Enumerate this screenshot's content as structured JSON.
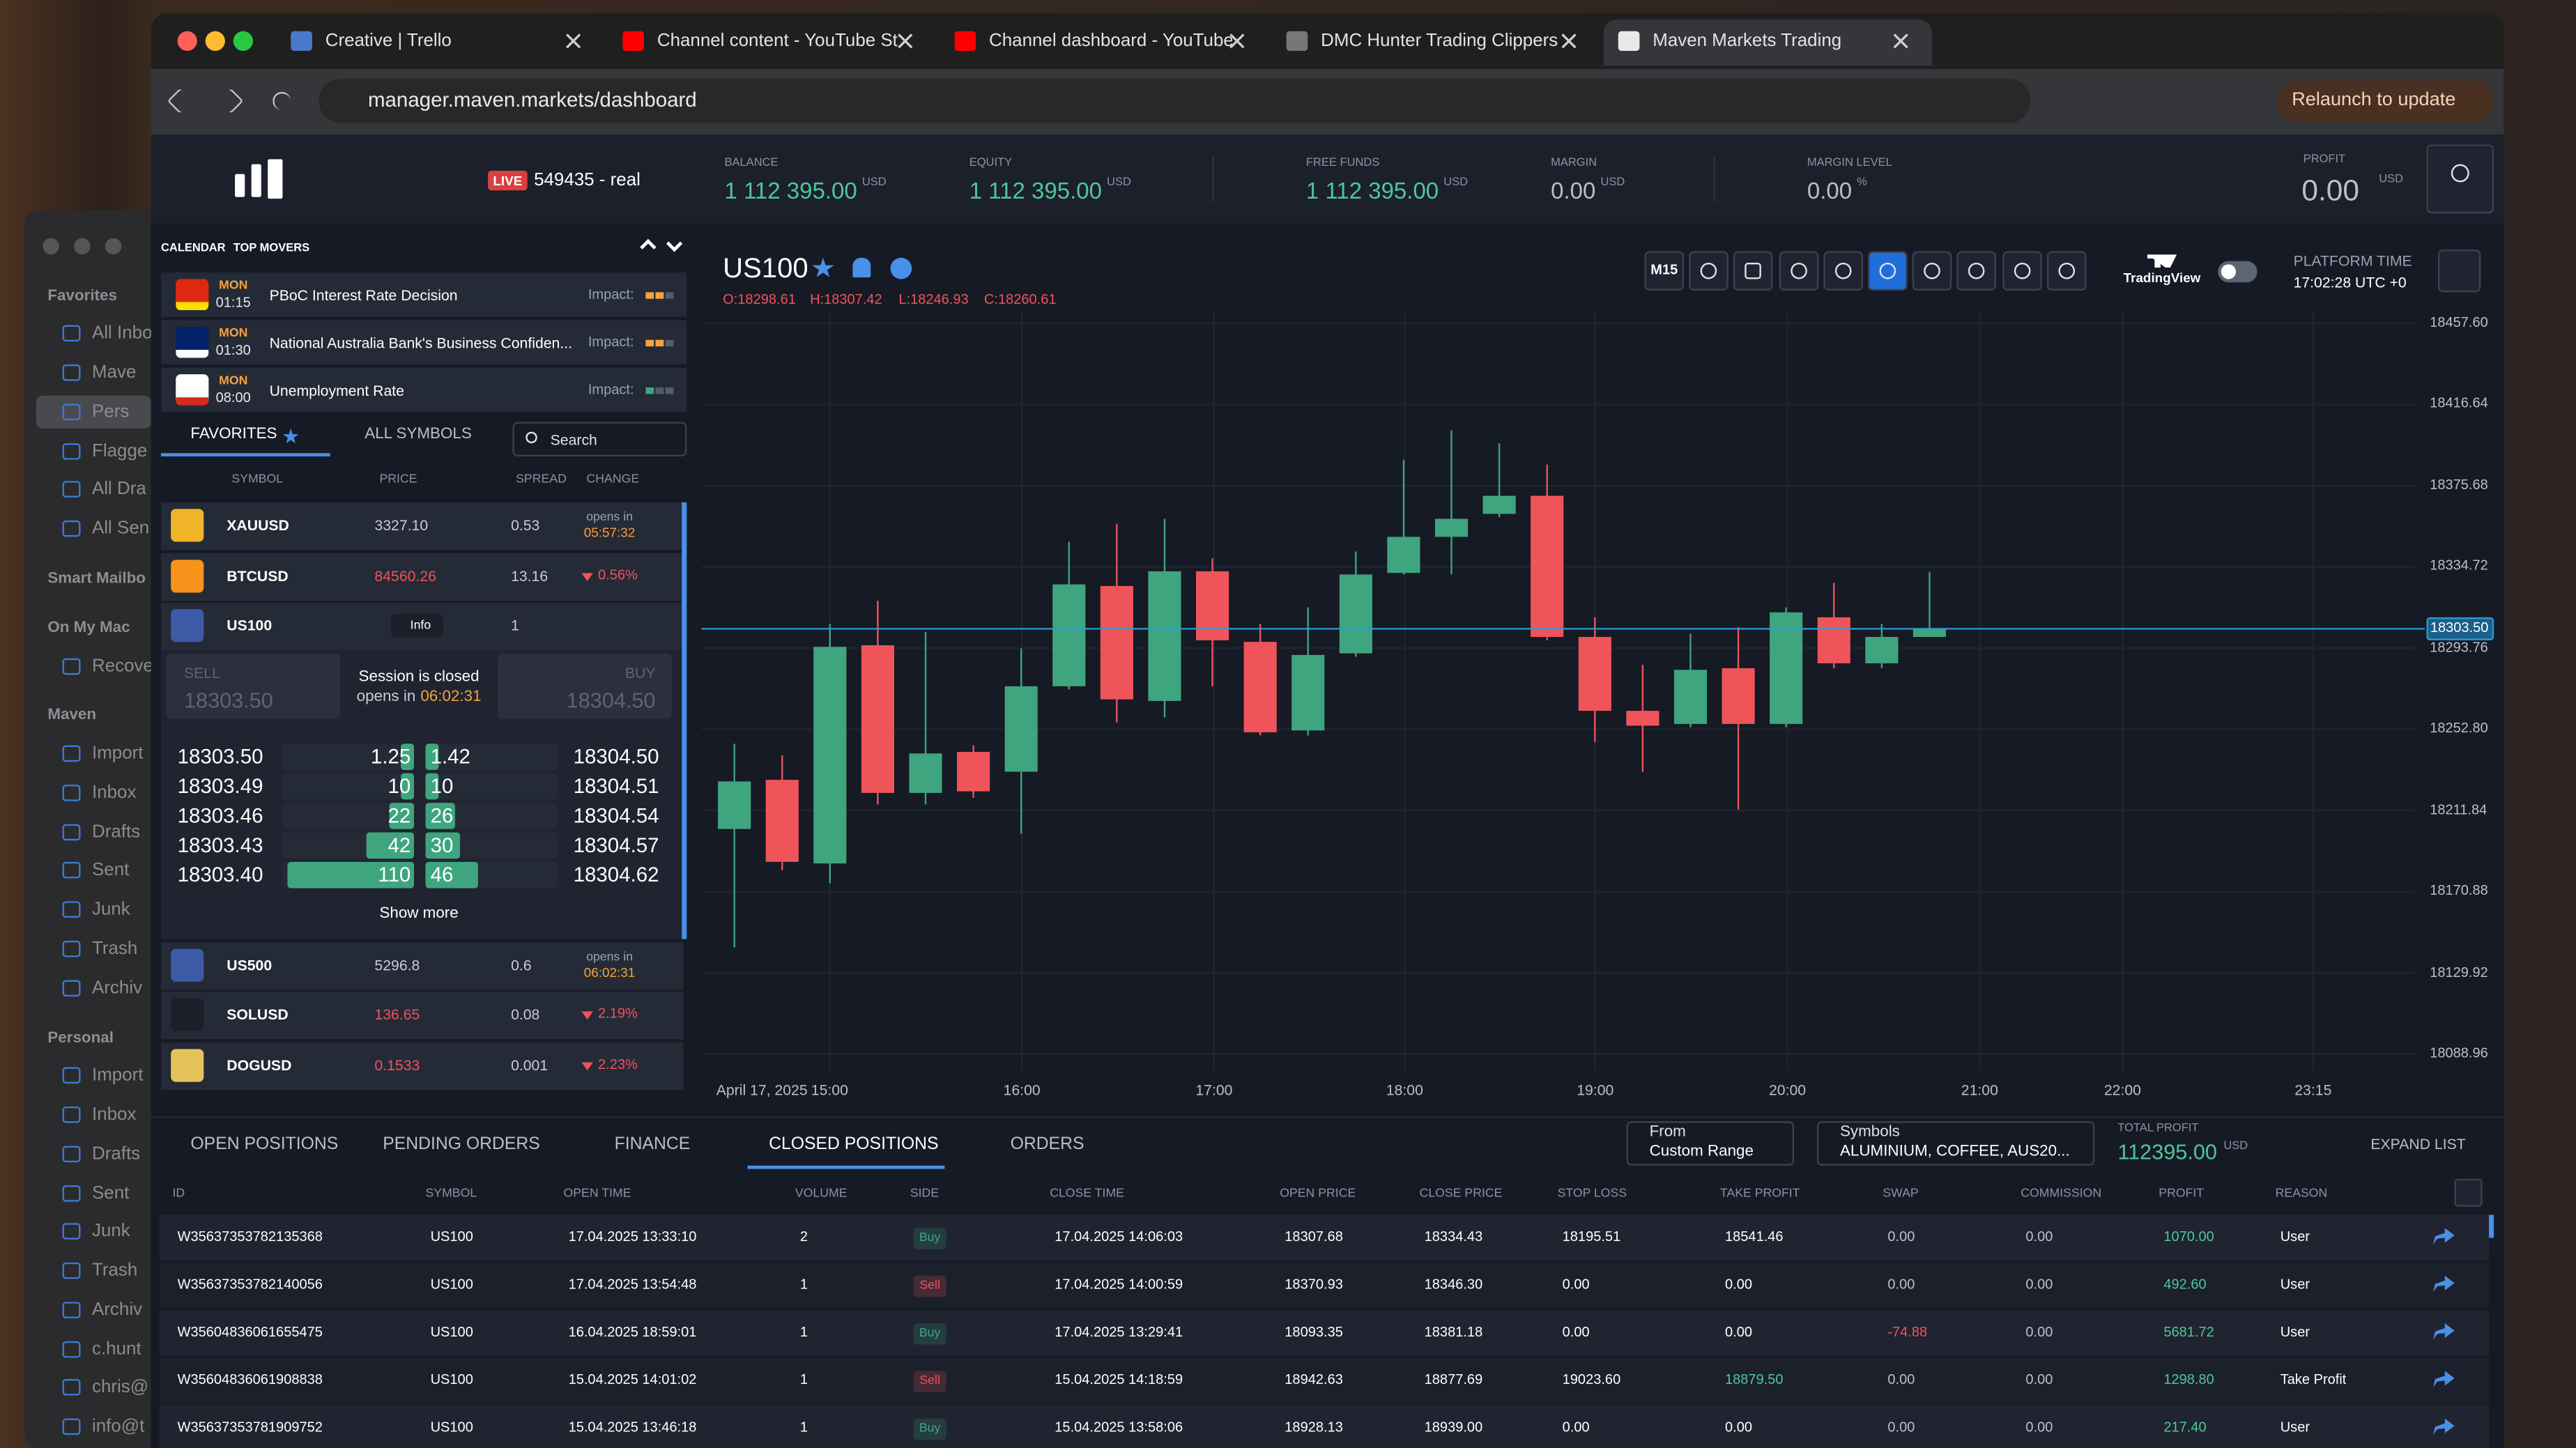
{
  "browser": {
    "tabs": [
      "Creative | Trello",
      "Channel content - YouTube St",
      "Channel dashboard - YouTube",
      "DMC Hunter Trading Clippers",
      "Maven Markets Trading"
    ],
    "url": "manager.maven.markets/dashboard",
    "relaunch": "Relaunch to update"
  },
  "mail_sidebar": [
    {
      "label": "Favorites",
      "kind": "section"
    },
    {
      "label": "All Inbo",
      "kind": "item"
    },
    {
      "label": "Mave",
      "kind": "item"
    },
    {
      "label": "Pers",
      "kind": "selected"
    },
    {
      "label": "Flagge",
      "kind": "item"
    },
    {
      "label": "All Dra",
      "kind": "item"
    },
    {
      "label": "All Sen",
      "kind": "item"
    },
    {
      "label": "Smart Mailbo",
      "kind": "section"
    },
    {
      "label": "On My Mac",
      "kind": "section"
    },
    {
      "label": "Recove",
      "kind": "item"
    },
    {
      "label": "Maven",
      "kind": "section"
    },
    {
      "label": "Import",
      "kind": "item"
    },
    {
      "label": "Inbox",
      "kind": "item"
    },
    {
      "label": "Drafts",
      "kind": "item"
    },
    {
      "label": "Sent",
      "kind": "item"
    },
    {
      "label": "Junk",
      "kind": "item"
    },
    {
      "label": "Trash",
      "kind": "item"
    },
    {
      "label": "Archiv",
      "kind": "item"
    },
    {
      "label": "Personal",
      "kind": "section"
    },
    {
      "label": "Import",
      "kind": "item"
    },
    {
      "label": "Inbox",
      "kind": "item"
    },
    {
      "label": "Drafts",
      "kind": "item"
    },
    {
      "label": "Sent",
      "kind": "item"
    },
    {
      "label": "Junk",
      "kind": "item"
    },
    {
      "label": "Trash",
      "kind": "item"
    },
    {
      "label": "Archiv",
      "kind": "item"
    },
    {
      "label": "c.hunt",
      "kind": "item"
    },
    {
      "label": "chris@",
      "kind": "item"
    },
    {
      "label": "info@t",
      "kind": "item"
    }
  ],
  "header": {
    "live": "LIVE",
    "account": "549435 - real",
    "stats": [
      {
        "label": "BALANCE",
        "value": "1 112 395.00",
        "unit": "USD"
      },
      {
        "label": "EQUITY",
        "value": "1 112 395.00",
        "unit": "USD"
      },
      {
        "label": "FREE FUNDS",
        "value": "1 112 395.00",
        "unit": "USD"
      },
      {
        "label": "MARGIN",
        "value": "0.00",
        "unit": "USD"
      },
      {
        "label": "MARGIN LEVEL",
        "value": "0.00",
        "unit": "%"
      }
    ],
    "profit": {
      "label": "PROFIT",
      "value": "0.00",
      "unit": "USD"
    }
  },
  "calendar": {
    "tabs": [
      "CALENDAR",
      "TOP MOVERS"
    ],
    "events": [
      {
        "day": "MON",
        "time": "01:15",
        "name": "PBoC Interest Rate Decision",
        "impact": "Impact:"
      },
      {
        "day": "MON",
        "time": "01:30",
        "name": "National Australia Bank's Business Confiden...",
        "impact": "Impact:"
      },
      {
        "day": "MON",
        "time": "08:00",
        "name": "Unemployment Rate",
        "impact": "Impact:"
      }
    ]
  },
  "symbols": {
    "tabs": [
      "FAVORITES",
      "ALL SYMBOLS"
    ],
    "search": "Search",
    "columns": [
      "SYMBOL",
      "PRICE",
      "SPREAD",
      "CHANGE"
    ],
    "rows": [
      {
        "symbol": "XAUUSD",
        "price": "3327.10",
        "spread": "0.53",
        "change": "opens in",
        "time": "05:57:32",
        "color": "#c8ccd4"
      },
      {
        "symbol": "BTCUSD",
        "price": "84560.26",
        "spread": "13.16",
        "change": "0.56%",
        "color": "#f0545b"
      },
      {
        "symbol": "US100",
        "info": "Info",
        "spread": "1"
      },
      {
        "symbol": "US500",
        "price": "5296.8",
        "spread": "0.6",
        "change": "opens in",
        "time": "06:02:31",
        "color": "#c8ccd4"
      },
      {
        "symbol": "SOLUSD",
        "price": "136.65",
        "spread": "0.08",
        "change": "2.19%",
        "color": "#f0545b"
      },
      {
        "symbol": "DOGUSD",
        "price": "0.1533",
        "spread": "0.001",
        "change": "2.23%",
        "color": "#f0545b"
      }
    ],
    "expanded": {
      "sell": "SELL",
      "sell_price": "18303.50",
      "status": "Session is closed",
      "opens": "opens in",
      "time": "06:02:31",
      "buy": "BUY",
      "buy_price": "18304.50",
      "show_more": "Show more",
      "depth": [
        {
          "sell": "18303.50",
          "sv": 1.25,
          "bv": 1.42,
          "buy": "18304.50"
        },
        {
          "sell": "18303.49",
          "sv": 10,
          "bv": 10,
          "buy": "18304.51"
        },
        {
          "sell": "18303.46",
          "sv": 22,
          "bv": 26,
          "buy": "18304.54"
        },
        {
          "sell": "18303.43",
          "sv": 42,
          "bv": 30,
          "buy": "18304.57"
        },
        {
          "sell": "18303.40",
          "sv": 110,
          "bv": 46,
          "buy": "18304.62"
        }
      ]
    }
  },
  "chart": {
    "type": "candlestick",
    "symbol": "US100",
    "ohlc": [
      "O:18298.61",
      "H:18307.42",
      "L:18246.93",
      "C:18260.61"
    ],
    "timeframe": "M15",
    "brand": "TradingView",
    "platform_time_label": "PLATFORM TIME",
    "platform_time": "17:02:28 UTC +0",
    "up_color": "#3fa57f",
    "down_color": "#f0545b",
    "ylim": [
      18078.2,
      18470.0
    ],
    "yticks": [
      {
        "value": 18457.6,
        "label": "18457.60"
      },
      {
        "value": 18416.64,
        "label": "18416.64"
      },
      {
        "value": 18375.68,
        "label": "18375.68"
      },
      {
        "value": 18334.72,
        "label": "18334.72"
      },
      {
        "value": 18293.76,
        "label": "18293.76"
      },
      {
        "value": 18252.8,
        "label": "18252.80"
      },
      {
        "value": 18211.84,
        "label": "18211.84"
      },
      {
        "value": 18170.88,
        "label": "18170.88"
      },
      {
        "value": 18129.92,
        "label": "18129.92"
      },
      {
        "value": 18088.96,
        "label": "18088.96"
      }
    ],
    "date": "April 17, 2025",
    "xticks": [
      "15:00",
      "16:00",
      "17:00",
      "18:00",
      "19:00",
      "20:00",
      "21:00",
      "22:00",
      "23:15"
    ],
    "last_price": {
      "value": 18303.5,
      "label": "18303.50"
    },
    "candles": [
      [
        18202.5,
        18245.5,
        18142.8,
        18226.5
      ],
      [
        18227.3,
        18239.7,
        18181.7,
        18185.9
      ],
      [
        18185.1,
        18306.0,
        18175.1,
        18294.4
      ],
      [
        18295.2,
        18317.6,
        18214.9,
        18220.7
      ],
      [
        18220.7,
        18301.9,
        18214.9,
        18240.6
      ],
      [
        18241.4,
        18244.7,
        18218.2,
        18221.5
      ],
      [
        18231.4,
        18293.6,
        18200.0,
        18274.5
      ],
      [
        18274.5,
        18347.4,
        18272.9,
        18325.9
      ],
      [
        18325.1,
        18356.5,
        18256.3,
        18267.9
      ],
      [
        18267.1,
        18359.0,
        18258.8,
        18332.5
      ],
      [
        18332.5,
        18339.1,
        18274.5,
        18297.7
      ],
      [
        18296.9,
        18306.0,
        18249.7,
        18251.3
      ],
      [
        18252.2,
        18314.3,
        18249.7,
        18290.3
      ],
      [
        18291.1,
        18342.5,
        18289.4,
        18330.9
      ],
      [
        18331.7,
        18388.8,
        18330.9,
        18349.9
      ],
      [
        18349.9,
        18403.7,
        18330.9,
        18359.0
      ],
      [
        18361.5,
        18397.1,
        18359.8,
        18370.6
      ],
      [
        18370.6,
        18386.4,
        18297.7,
        18299.4
      ],
      [
        18299.4,
        18309.3,
        18246.4,
        18262.1
      ],
      [
        18262.1,
        18285.3,
        18231.4,
        18254.6
      ],
      [
        18255.5,
        18301.0,
        18253.8,
        18282.8
      ],
      [
        18283.6,
        18304.3,
        18212.4,
        18255.5
      ],
      [
        18255.5,
        18314.3,
        18253.8,
        18311.8
      ],
      [
        18309.3,
        18326.7,
        18283.6,
        18286.1
      ],
      [
        18286.1,
        18306.0,
        18283.6,
        18299.4
      ],
      [
        18299.4,
        18332.2,
        18299.4,
        18303.5
      ]
    ]
  },
  "positions": {
    "tabs": [
      "OPEN POSITIONS",
      "PENDING ORDERS",
      "FINANCE",
      "CLOSED POSITIONS",
      "ORDERS"
    ],
    "active_tab": 3,
    "from_label": "From",
    "from": "Custom Range",
    "symbols_label": "Symbols",
    "symbols": "ALUMINIUM, COFFEE, AUS20...",
    "total_profit_label": "TOTAL PROFIT",
    "total_profit": "112395.00",
    "unit": "USD",
    "expand": "EXPAND LIST",
    "side_colors": {
      "Buy": "#3fa57f",
      "Sell": "#f0545b"
    },
    "columns": [
      "ID",
      "SYMBOL",
      "OPEN TIME",
      "VOLUME",
      "SIDE",
      "CLOSE TIME",
      "OPEN PRICE",
      "CLOSE PRICE",
      "STOP LOSS",
      "TAKE PROFIT",
      "SWAP",
      "COMMISSION",
      "PROFIT",
      "REASON"
    ],
    "rows": [
      [
        "W35637353782135368",
        "US100",
        "17.04.2025 13:33:10",
        "2",
        "Buy",
        "17.04.2025 14:06:03",
        "18307.68",
        "18334.43",
        "18195.51",
        "18541.46",
        "0.00",
        "0.00",
        "1070.00",
        "User"
      ],
      [
        "W35637353782140056",
        "US100",
        "17.04.2025 13:54:48",
        "1",
        "Sell",
        "17.04.2025 14:00:59",
        "18370.93",
        "18346.30",
        "0.00",
        "0.00",
        "0.00",
        "0.00",
        "492.60",
        "User"
      ],
      [
        "W35604836061655475",
        "US100",
        "16.04.2025 18:59:01",
        "1",
        "Buy",
        "17.04.2025 13:29:41",
        "18093.35",
        "18381.18",
        "0.00",
        "0.00",
        "-74.88",
        "0.00",
        "5681.72",
        "User"
      ],
      [
        "W35604836061908838",
        "US100",
        "15.04.2025 14:01:02",
        "1",
        "Sell",
        "15.04.2025 14:18:59",
        "18942.63",
        "18877.69",
        "19023.60",
        "18879.50",
        "0.00",
        "0.00",
        "1298.80",
        "Take Profit"
      ],
      [
        "W35637353781909752",
        "US100",
        "15.04.2025 13:46:18",
        "1",
        "Buy",
        "15.04.2025 13:58:06",
        "18928.13",
        "18939.00",
        "0.00",
        "0.00",
        "0.00",
        "0.00",
        "217.40",
        "User"
      ]
    ]
  }
}
